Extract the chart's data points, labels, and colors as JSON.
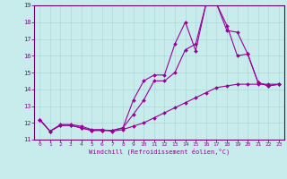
{
  "xlabel": "Windchill (Refroidissement éolien,°C)",
  "bg_color": "#c8ecec",
  "line_color": "#990099",
  "grid_color": "#b0d8d8",
  "text_color": "#990099",
  "spine_color": "#660066",
  "xlim_min": -0.5,
  "xlim_max": 23.5,
  "ylim_min": 11,
  "ylim_max": 19,
  "xticks": [
    0,
    1,
    2,
    3,
    4,
    5,
    6,
    7,
    8,
    9,
    10,
    11,
    12,
    13,
    14,
    15,
    16,
    17,
    18,
    19,
    20,
    21,
    22,
    23
  ],
  "yticks": [
    11,
    12,
    13,
    14,
    15,
    16,
    17,
    18,
    19
  ],
  "series1_x": [
    0,
    1,
    2,
    3,
    4,
    5,
    6,
    7,
    8,
    9,
    10,
    11,
    12,
    13,
    14,
    15,
    16,
    17,
    18,
    19,
    20,
    21,
    22,
    23
  ],
  "series1_y": [
    12.2,
    11.5,
    11.85,
    11.85,
    11.7,
    11.55,
    11.55,
    11.55,
    11.7,
    13.35,
    14.5,
    14.85,
    14.85,
    16.7,
    18.0,
    16.3,
    19.1,
    19.1,
    17.8,
    16.0,
    16.1,
    14.4,
    14.2,
    14.3
  ],
  "series2_x": [
    0,
    1,
    2,
    3,
    4,
    5,
    6,
    7,
    8,
    9,
    10,
    11,
    12,
    13,
    14,
    15,
    16,
    17,
    18,
    19,
    20,
    21,
    22,
    23
  ],
  "series2_y": [
    12.2,
    11.5,
    11.85,
    11.85,
    11.7,
    11.55,
    11.55,
    11.55,
    11.7,
    12.5,
    13.35,
    14.5,
    14.5,
    15.0,
    16.35,
    16.7,
    19.1,
    19.1,
    17.5,
    17.4,
    16.1,
    14.4,
    14.2,
    14.3
  ],
  "series3_x": [
    0,
    1,
    2,
    3,
    4,
    5,
    6,
    7,
    8,
    9,
    10,
    11,
    12,
    13,
    14,
    15,
    16,
    17,
    18,
    19,
    20,
    21,
    22,
    23
  ],
  "series3_y": [
    12.2,
    11.5,
    11.9,
    11.9,
    11.8,
    11.6,
    11.6,
    11.5,
    11.6,
    11.8,
    12.0,
    12.3,
    12.6,
    12.9,
    13.2,
    13.5,
    13.8,
    14.1,
    14.2,
    14.3,
    14.3,
    14.3,
    14.3,
    14.3
  ]
}
